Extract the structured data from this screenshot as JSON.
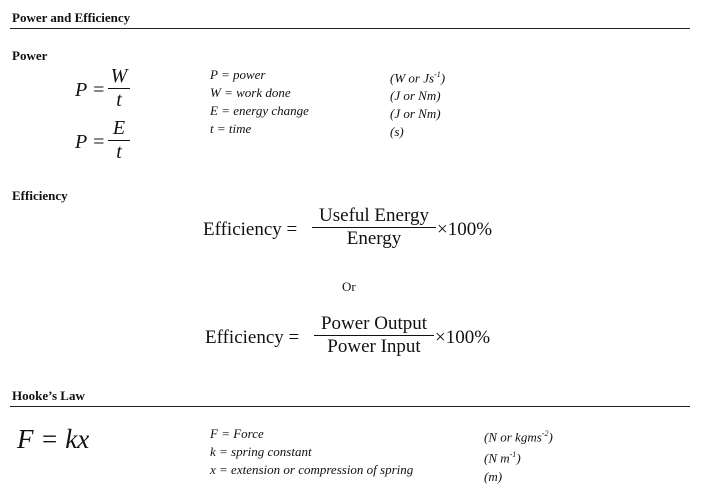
{
  "title": "Power and Efficiency",
  "power": {
    "heading": "Power",
    "formula1": {
      "lhs": "P =",
      "numerator": "W",
      "denominator": "t"
    },
    "formula2": {
      "lhs": "P =",
      "numerator": "E",
      "denominator": "t"
    },
    "variables": [
      {
        "label": "P = power",
        "unit_pre": "(W or Js",
        "unit_sup": "-1",
        "unit_post": ")"
      },
      {
        "label": "W = work done",
        "unit_pre": "(J or Nm)",
        "unit_sup": "",
        "unit_post": ""
      },
      {
        "label": "E = energy change",
        "unit_pre": "(J or Nm)",
        "unit_sup": "",
        "unit_post": ""
      },
      {
        "label": "t = time",
        "unit_pre": "(s)",
        "unit_sup": "",
        "unit_post": ""
      }
    ]
  },
  "efficiency": {
    "heading": "Efficiency",
    "formula1": {
      "lhs": "Efficiency =",
      "numerator": "Useful Energy",
      "denominator": "Energy",
      "rhs": "×100%"
    },
    "or": "Or",
    "formula2": {
      "lhs": "Efficiency =",
      "numerator": "Power Output",
      "denominator": "Power Input",
      "rhs": "×100%"
    }
  },
  "hooke": {
    "heading": "Hooke’s Law",
    "formula": "F = kx",
    "variables": [
      {
        "label": "F = Force",
        "unit_pre": "(N or kgms",
        "unit_sup": "-2",
        "unit_post": ")"
      },
      {
        "label": "k = spring constant",
        "unit_pre": "(N m",
        "unit_sup": "-1",
        "unit_post": ")"
      },
      {
        "label": "x = extension or compression of spring",
        "unit_pre": "(m)",
        "unit_sup": "",
        "unit_post": ""
      }
    ]
  }
}
